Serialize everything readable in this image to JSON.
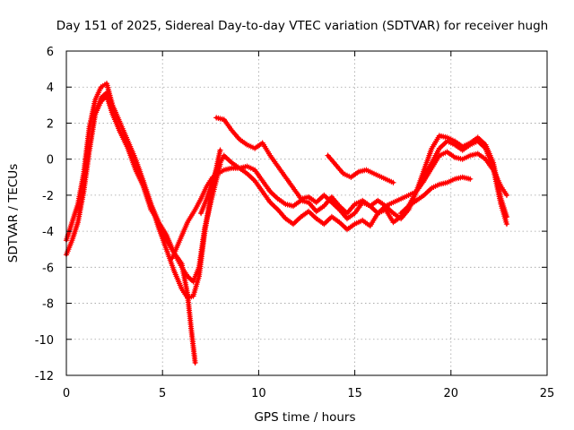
{
  "chart_data": {
    "type": "scatter",
    "title": "Day 151 of 2025, Sidereal Day-to-day VTEC variation (SDTVAR) for receiver hugh",
    "xlabel": "GPS time / hours",
    "ylabel": "SDTVAR / TECUs",
    "xlim": [
      0,
      25
    ],
    "ylim": [
      -12,
      6
    ],
    "xticks": [
      0,
      5,
      10,
      15,
      20,
      25
    ],
    "yticks": [
      -12,
      -10,
      -8,
      -6,
      -4,
      -2,
      0,
      2,
      4,
      6
    ],
    "xtick_labels": [
      "0",
      "5",
      "10",
      "15",
      "20",
      "25"
    ],
    "ytick_labels": [
      "-12",
      "-10",
      "-8",
      "-6",
      "-4",
      "-2",
      "0",
      "2",
      "4",
      "6"
    ],
    "grid": true,
    "marker": "+",
    "color": "#ff0000",
    "series": [
      {
        "name": "track-a",
        "x": [
          0.0,
          0.3,
          0.6,
          0.9,
          1.2,
          1.5,
          1.8,
          2.1,
          2.4,
          2.8,
          3.2,
          3.6,
          4.0,
          4.4,
          4.8,
          5.2,
          5.6,
          6.0,
          6.3,
          6.6,
          6.9,
          7.2,
          7.6,
          8.0
        ],
        "y": [
          -4.5,
          -3.5,
          -2.5,
          -0.8,
          1.8,
          3.3,
          4.0,
          4.2,
          3.0,
          2.0,
          1.0,
          0.0,
          -1.2,
          -2.5,
          -3.8,
          -5.0,
          -6.2,
          -7.2,
          -7.7,
          -7.6,
          -6.5,
          -4.0,
          -1.5,
          0.5
        ]
      },
      {
        "name": "track-b",
        "x": [
          0.0,
          0.3,
          0.6,
          0.9,
          1.2,
          1.5,
          1.8,
          2.1,
          2.4,
          2.8,
          3.2,
          3.6,
          4.0,
          4.4,
          4.8,
          5.2,
          5.6,
          6.0,
          6.3,
          6.6,
          6.9,
          7.2,
          7.6,
          8.0
        ],
        "y": [
          -5.3,
          -4.5,
          -3.5,
          -1.8,
          0.5,
          2.5,
          3.4,
          3.7,
          2.6,
          1.5,
          0.6,
          -0.6,
          -1.5,
          -2.8,
          -3.5,
          -4.2,
          -5.2,
          -6.0,
          -6.5,
          -6.8,
          -6.0,
          -3.8,
          -2.0,
          -0.3
        ]
      },
      {
        "name": "track-c",
        "x": [
          1.5,
          1.8,
          2.1,
          2.4,
          2.8,
          3.2,
          3.6,
          4.0,
          4.4,
          4.8,
          5.2,
          5.6,
          6.0,
          6.3,
          6.5,
          6.7
        ],
        "y": [
          2.5,
          3.2,
          3.5,
          2.5,
          1.5,
          0.8,
          -0.3,
          -1.5,
          -2.5,
          -3.5,
          -4.5,
          -5.2,
          -5.8,
          -7.5,
          -9.5,
          -11.3
        ]
      },
      {
        "name": "track-d",
        "x": [
          5.5,
          5.9,
          6.3,
          6.7,
          7.0,
          7.3,
          7.6,
          7.9,
          8.2,
          8.6,
          9.0,
          9.4,
          9.8,
          10.2,
          10.6,
          11.0,
          11.4,
          11.8,
          12.2,
          12.6,
          13.0,
          13.4,
          13.8,
          14.2,
          14.6,
          15.0,
          15.4,
          15.8,
          16.2,
          16.6,
          17.0,
          17.4,
          17.8,
          18.2,
          18.6,
          19.0,
          19.4,
          19.8,
          20.2,
          20.6,
          21.0,
          21.4,
          21.8,
          22.2,
          22.6,
          22.9
        ],
        "y": [
          -5.5,
          -4.5,
          -3.5,
          -2.8,
          -2.2,
          -1.5,
          -1.0,
          -0.8,
          -0.6,
          -0.5,
          -0.5,
          -0.4,
          -0.6,
          -1.2,
          -1.8,
          -2.2,
          -2.5,
          -2.6,
          -2.3,
          -2.4,
          -2.9,
          -2.6,
          -2.1,
          -2.6,
          -3.0,
          -2.5,
          -2.3,
          -2.6,
          -3.0,
          -2.6,
          -2.4,
          -2.2,
          -2.0,
          -1.8,
          -1.2,
          -0.5,
          0.2,
          0.4,
          0.1,
          0.0,
          0.2,
          0.3,
          0.0,
          -0.6,
          -1.5,
          -2.0
        ]
      },
      {
        "name": "track-e",
        "x": [
          7.0,
          7.3,
          7.6,
          7.9,
          8.2,
          8.6,
          9.0,
          9.4,
          9.8,
          10.2,
          10.6,
          11.0,
          11.4,
          11.8,
          12.2,
          12.6,
          13.0,
          13.4,
          13.8,
          14.2,
          14.6,
          15.0,
          15.4,
          15.8,
          16.2,
          16.6,
          17.0,
          17.4,
          17.8,
          18.2,
          18.6,
          19.0,
          19.4,
          19.8,
          20.2,
          20.6,
          21.0,
          21.4,
          21.8,
          22.2,
          22.6,
          22.9
        ],
        "y": [
          -3.0,
          -2.2,
          -1.2,
          -0.4,
          0.2,
          -0.2,
          -0.5,
          -0.8,
          -1.2,
          -1.8,
          -2.4,
          -2.8,
          -3.3,
          -3.6,
          -3.2,
          -2.9,
          -3.3,
          -3.6,
          -3.2,
          -3.5,
          -3.9,
          -3.6,
          -3.4,
          -3.7,
          -3.0,
          -2.8,
          -3.5,
          -3.2,
          -2.6,
          -1.8,
          -0.9,
          -0.2,
          0.6,
          1.0,
          0.8,
          0.5,
          0.8,
          1.0,
          0.6,
          -0.5,
          -2.5,
          -3.6
        ]
      },
      {
        "name": "track-f",
        "x": [
          7.8,
          8.2,
          8.6,
          9.0,
          9.4,
          9.8,
          10.2,
          10.6,
          11.0,
          11.4,
          11.8,
          12.2,
          12.6,
          13.0,
          13.4,
          13.8,
          14.2,
          14.6,
          15.0,
          15.4,
          15.8,
          16.2,
          16.6,
          17.0,
          17.4,
          17.8,
          18.2,
          18.6,
          19.0,
          19.4,
          19.8,
          20.2,
          20.6,
          21.0,
          21.4,
          21.8,
          22.2,
          22.6,
          22.9
        ],
        "y": [
          2.3,
          2.2,
          1.6,
          1.1,
          0.8,
          0.6,
          0.9,
          0.2,
          -0.4,
          -1.0,
          -1.6,
          -2.2,
          -2.1,
          -2.4,
          -2.0,
          -2.4,
          -2.8,
          -3.3,
          -3.0,
          -2.4,
          -2.6,
          -2.3,
          -2.6,
          -3.0,
          -3.3,
          -2.8,
          -1.8,
          -0.6,
          0.6,
          1.3,
          1.2,
          1.0,
          0.7,
          0.9,
          1.2,
          0.8,
          -0.2,
          -2.2,
          -3.2
        ]
      },
      {
        "name": "track-g",
        "x": [
          13.6,
          14.0,
          14.4,
          14.8,
          15.2,
          15.6,
          16.0,
          16.4,
          16.8,
          17.0
        ],
        "y": [
          0.2,
          -0.3,
          -0.8,
          -1.0,
          -0.7,
          -0.6,
          -0.8,
          -1.0,
          -1.2,
          -1.3
        ]
      },
      {
        "name": "track-h",
        "x": [
          17.4,
          17.8,
          18.2,
          18.6,
          19.0,
          19.4,
          19.8,
          20.2,
          20.6,
          21.0
        ],
        "y": [
          -3.0,
          -2.6,
          -2.3,
          -2.0,
          -1.6,
          -1.4,
          -1.3,
          -1.1,
          -1.0,
          -1.1
        ]
      }
    ]
  }
}
